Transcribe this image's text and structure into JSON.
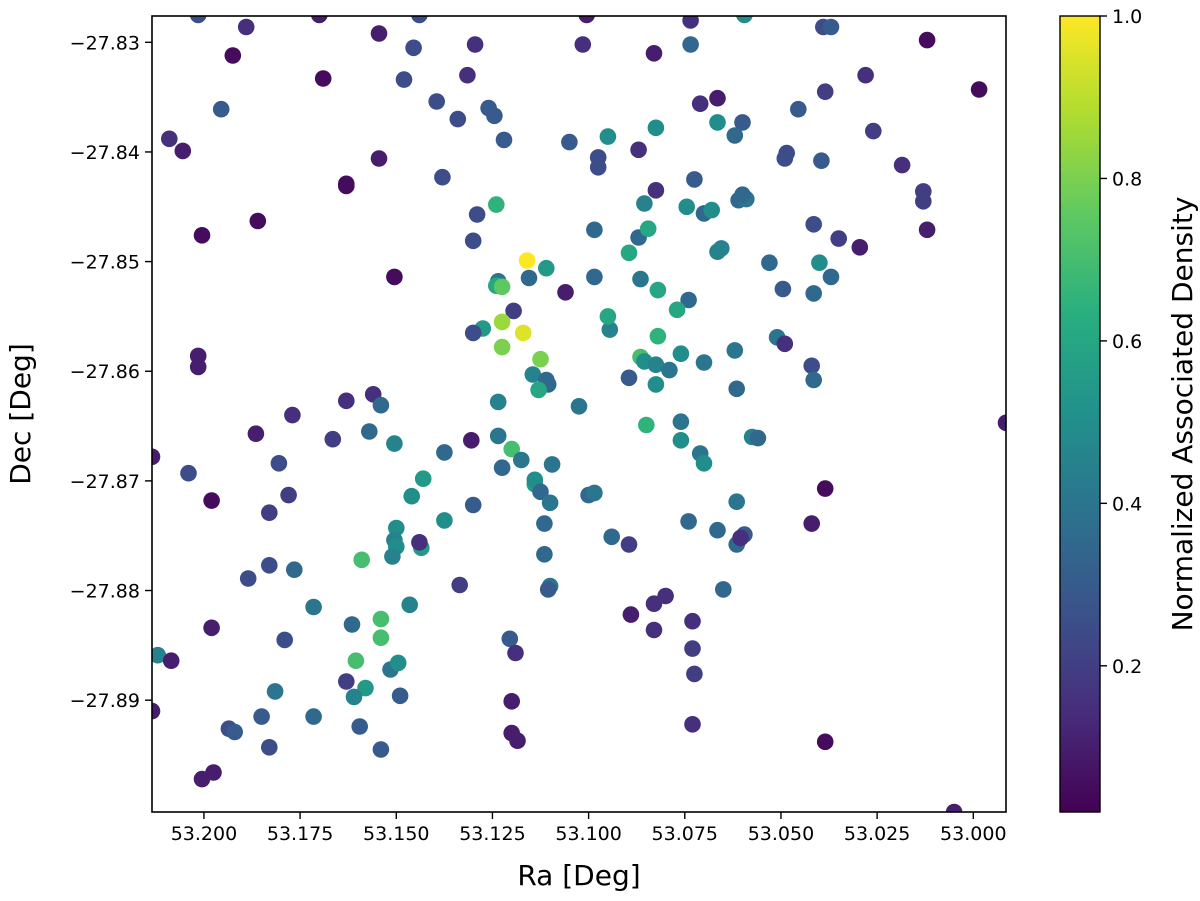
{
  "chart_data": {
    "type": "scatter",
    "xlabel": "Ra [Deg]",
    "ylabel": "Dec [Deg]",
    "colorbar_label": "Normalized Associated Density",
    "x_reversed": true,
    "xlim": [
      53.2135,
      52.9915
    ],
    "ylim": [
      -27.9002,
      -27.8276
    ],
    "x_ticks": [
      53.2,
      53.175,
      53.15,
      53.125,
      53.1,
      53.075,
      53.05,
      53.025,
      53.0
    ],
    "x_tick_labels": [
      "53.200",
      "53.175",
      "53.150",
      "53.125",
      "53.100",
      "53.075",
      "53.050",
      "53.025",
      "53.000"
    ],
    "y_ticks": [
      -27.83,
      -27.84,
      -27.85,
      -27.86,
      -27.87,
      -27.88,
      -27.89
    ],
    "y_tick_labels": [
      "−27.83",
      "−27.84",
      "−27.85",
      "−27.86",
      "−27.87",
      "−27.88",
      "−27.89"
    ],
    "colorbar_ticks": [
      0.2,
      0.4,
      0.6,
      0.8,
      1.0
    ],
    "colorbar_tick_labels": [
      "0.2",
      "0.4",
      "0.6",
      "0.8",
      "1.0"
    ],
    "colormap": "viridis",
    "colorbar_range": [
      0.02,
      1.0
    ],
    "grid": false,
    "points": [
      [
        53.2015,
        -27.8275,
        0.25
      ],
      [
        53.17,
        -27.8275,
        0.1
      ],
      [
        53.144,
        -27.8275,
        0.25
      ],
      [
        53.1005,
        -27.8275,
        0.1
      ],
      [
        53.0735,
        -27.828,
        0.15
      ],
      [
        53.0595,
        -27.8275,
        0.5
      ],
      [
        53.1925,
        -27.8312,
        0.05
      ],
      [
        53.189,
        -27.8286,
        0.15
      ],
      [
        53.1545,
        -27.8292,
        0.1
      ],
      [
        53.1455,
        -27.8305,
        0.25
      ],
      [
        53.1295,
        -27.8302,
        0.15
      ],
      [
        53.1015,
        -27.8302,
        0.15
      ],
      [
        53.083,
        -27.831,
        0.1
      ],
      [
        53.0735,
        -27.8302,
        0.35
      ],
      [
        53.039,
        -27.8286,
        0.25
      ],
      [
        53.037,
        -27.8286,
        0.3
      ],
      [
        53.012,
        -27.8298,
        0.05
      ],
      [
        53.169,
        -27.8333,
        0.05
      ],
      [
        53.148,
        -27.8334,
        0.25
      ],
      [
        53.1315,
        -27.833,
        0.15
      ],
      [
        53.028,
        -27.833,
        0.15
      ],
      [
        52.9985,
        -27.8343,
        0.05
      ],
      [
        53.1955,
        -27.8361,
        0.3
      ],
      [
        53.1395,
        -27.8354,
        0.25
      ],
      [
        53.134,
        -27.837,
        0.25
      ],
      [
        53.1245,
        -27.8367,
        0.3
      ],
      [
        53.071,
        -27.8356,
        0.15
      ],
      [
        53.0665,
        -27.8351,
        0.1
      ],
      [
        53.0385,
        -27.8345,
        0.2
      ],
      [
        53.0455,
        -27.8361,
        0.3
      ],
      [
        53.126,
        -27.836,
        0.3
      ],
      [
        53.209,
        -27.8388,
        0.15
      ],
      [
        53.2055,
        -27.8399,
        0.1
      ],
      [
        53.122,
        -27.8389,
        0.3
      ],
      [
        53.105,
        -27.8391,
        0.3
      ],
      [
        53.095,
        -27.8386,
        0.5
      ],
      [
        53.0825,
        -27.8378,
        0.5
      ],
      [
        53.0665,
        -27.8373,
        0.5
      ],
      [
        53.06,
        -27.8373,
        0.3
      ],
      [
        53.062,
        -27.8385,
        0.35
      ],
      [
        53.026,
        -27.8381,
        0.2
      ],
      [
        53.1545,
        -27.8406,
        0.1
      ],
      [
        53.0975,
        -27.8405,
        0.25
      ],
      [
        53.0975,
        -27.8414,
        0.25
      ],
      [
        53.087,
        -27.8398,
        0.15
      ],
      [
        53.0485,
        -27.8401,
        0.25
      ],
      [
        53.049,
        -27.8406,
        0.25
      ],
      [
        53.0185,
        -27.8412,
        0.15
      ],
      [
        53.0395,
        -27.8408,
        0.3
      ],
      [
        53.163,
        -27.8429,
        0.05
      ],
      [
        53.163,
        -27.8431,
        0.05
      ],
      [
        53.138,
        -27.8423,
        0.25
      ],
      [
        53.0825,
        -27.8435,
        0.15
      ],
      [
        53.0725,
        -27.8425,
        0.3
      ],
      [
        53.013,
        -27.8436,
        0.2
      ],
      [
        53.013,
        -27.8445,
        0.2
      ],
      [
        53.124,
        -27.8448,
        0.65
      ],
      [
        53.129,
        -27.8457,
        0.25
      ],
      [
        53.0855,
        -27.8447,
        0.45
      ],
      [
        53.0745,
        -27.845,
        0.5
      ],
      [
        53.07,
        -27.8456,
        0.35
      ],
      [
        53.068,
        -27.8453,
        0.5
      ],
      [
        53.061,
        -27.8444,
        0.35
      ],
      [
        53.059,
        -27.8443,
        0.4
      ],
      [
        53.06,
        -27.8439,
        0.35
      ],
      [
        53.2005,
        -27.8476,
        0.05
      ],
      [
        53.186,
        -27.8463,
        0.05
      ],
      [
        53.13,
        -27.8481,
        0.25
      ],
      [
        53.0985,
        -27.8471,
        0.35
      ],
      [
        53.087,
        -27.8478,
        0.35
      ],
      [
        53.0845,
        -27.847,
        0.6
      ],
      [
        53.0655,
        -27.8488,
        0.45
      ],
      [
        53.0665,
        -27.8491,
        0.45
      ],
      [
        53.0415,
        -27.8466,
        0.25
      ],
      [
        53.035,
        -27.8479,
        0.2
      ],
      [
        53.0295,
        -27.8487,
        0.1
      ],
      [
        53.012,
        -27.8471,
        0.1
      ],
      [
        53.1505,
        -27.8514,
        0.05
      ],
      [
        53.1235,
        -27.8518,
        0.4
      ],
      [
        53.124,
        -27.8522,
        0.6
      ],
      [
        53.116,
        -27.8499,
        1.0
      ],
      [
        53.1155,
        -27.8515,
        0.35
      ],
      [
        53.111,
        -27.8506,
        0.55
      ],
      [
        53.106,
        -27.8528,
        0.1
      ],
      [
        53.0985,
        -27.8514,
        0.35
      ],
      [
        53.0895,
        -27.8492,
        0.6
      ],
      [
        53.0865,
        -27.8516,
        0.4
      ],
      [
        53.082,
        -27.8526,
        0.6
      ],
      [
        53.053,
        -27.8501,
        0.35
      ],
      [
        53.0495,
        -27.8525,
        0.3
      ],
      [
        53.04,
        -27.8501,
        0.5
      ],
      [
        53.037,
        -27.8514,
        0.35
      ],
      [
        53.0415,
        -27.8529,
        0.35
      ],
      [
        53.074,
        -27.8535,
        0.35
      ],
      [
        53.077,
        -27.8544,
        0.6
      ],
      [
        53.1225,
        -27.8523,
        0.75
      ],
      [
        53.1195,
        -27.8545,
        0.2
      ],
      [
        53.1225,
        -27.8555,
        0.85
      ],
      [
        53.1275,
        -27.8561,
        0.55
      ],
      [
        53.13,
        -27.8565,
        0.25
      ],
      [
        53.117,
        -27.8565,
        0.95
      ],
      [
        53.1225,
        -27.8578,
        0.8
      ],
      [
        53.1125,
        -27.8589,
        0.8
      ],
      [
        53.0945,
        -27.8562,
        0.45
      ],
      [
        53.095,
        -27.855,
        0.6
      ],
      [
        53.082,
        -27.8568,
        0.65
      ],
      [
        53.051,
        -27.8569,
        0.4
      ],
      [
        53.049,
        -27.8575,
        0.15
      ],
      [
        53.2015,
        -27.8586,
        0.1
      ],
      [
        53.2015,
        -27.8596,
        0.1
      ],
      [
        53.1145,
        -27.8603,
        0.45
      ],
      [
        53.111,
        -27.8608,
        0.35
      ],
      [
        53.1105,
        -27.8612,
        0.35
      ],
      [
        53.113,
        -27.8617,
        0.6
      ],
      [
        53.0895,
        -27.8606,
        0.3
      ],
      [
        53.0865,
        -27.8587,
        0.7
      ],
      [
        53.0855,
        -27.8591,
        0.5
      ],
      [
        53.0825,
        -27.8594,
        0.45
      ],
      [
        53.0825,
        -27.8612,
        0.5
      ],
      [
        53.079,
        -27.8599,
        0.4
      ],
      [
        53.076,
        -27.8584,
        0.5
      ],
      [
        53.07,
        -27.8592,
        0.4
      ],
      [
        53.062,
        -27.8581,
        0.4
      ],
      [
        53.042,
        -27.8595,
        0.25
      ],
      [
        53.0415,
        -27.8608,
        0.35
      ],
      [
        53.163,
        -27.8627,
        0.15
      ],
      [
        53.156,
        -27.8621,
        0.15
      ],
      [
        53.154,
        -27.8631,
        0.35
      ],
      [
        53.1235,
        -27.8628,
        0.45
      ],
      [
        53.1025,
        -27.8632,
        0.4
      ],
      [
        53.085,
        -27.8649,
        0.65
      ],
      [
        53.076,
        -27.8646,
        0.4
      ],
      [
        53.0615,
        -27.8616,
        0.35
      ],
      [
        53.2135,
        -27.8678,
        0.1
      ],
      [
        53.1865,
        -27.8657,
        0.1
      ],
      [
        53.177,
        -27.864,
        0.15
      ],
      [
        53.1665,
        -27.8662,
        0.2
      ],
      [
        53.157,
        -27.8655,
        0.35
      ],
      [
        53.1505,
        -27.8666,
        0.45
      ],
      [
        53.1375,
        -27.8674,
        0.35
      ],
      [
        53.1305,
        -27.8663,
        0.1
      ],
      [
        53.1235,
        -27.8659,
        0.4
      ],
      [
        53.12,
        -27.8671,
        0.7
      ],
      [
        53.1225,
        -27.8688,
        0.35
      ],
      [
        53.1175,
        -27.8681,
        0.4
      ],
      [
        53.1095,
        -27.8685,
        0.4
      ],
      [
        53.076,
        -27.8663,
        0.5
      ],
      [
        53.071,
        -27.8675,
        0.4
      ],
      [
        53.07,
        -27.8684,
        0.5
      ],
      [
        53.0575,
        -27.866,
        0.45
      ],
      [
        53.056,
        -27.8661,
        0.35
      ],
      [
        52.9915,
        -27.8647,
        0.1
      ],
      [
        53.204,
        -27.8693,
        0.25
      ],
      [
        53.198,
        -27.8718,
        0.05
      ],
      [
        53.1805,
        -27.8684,
        0.25
      ],
      [
        53.178,
        -27.8713,
        0.2
      ],
      [
        53.143,
        -27.8698,
        0.55
      ],
      [
        53.146,
        -27.8714,
        0.5
      ],
      [
        53.13,
        -27.8722,
        0.3
      ],
      [
        53.114,
        -27.8703,
        0.55
      ],
      [
        53.114,
        -27.8699,
        0.5
      ],
      [
        53.1125,
        -27.871,
        0.35
      ],
      [
        53.11,
        -27.872,
        0.4
      ],
      [
        53.1,
        -27.8713,
        0.35
      ],
      [
        53.0985,
        -27.8711,
        0.4
      ],
      [
        53.0615,
        -27.8719,
        0.4
      ],
      [
        53.0385,
        -27.8707,
        0.05
      ],
      [
        53.183,
        -27.8729,
        0.2
      ],
      [
        53.1375,
        -27.8736,
        0.5
      ],
      [
        53.1115,
        -27.8739,
        0.35
      ],
      [
        53.074,
        -27.8737,
        0.35
      ],
      [
        53.042,
        -27.8739,
        0.1
      ],
      [
        53.15,
        -27.8743,
        0.5
      ],
      [
        53.1505,
        -27.8754,
        0.45
      ],
      [
        53.15,
        -27.876,
        0.5
      ],
      [
        53.1435,
        -27.8761,
        0.55
      ],
      [
        53.144,
        -27.8756,
        0.15
      ],
      [
        53.151,
        -27.8769,
        0.45
      ],
      [
        53.094,
        -27.8751,
        0.35
      ],
      [
        53.0895,
        -27.8758,
        0.2
      ],
      [
        53.0665,
        -27.8745,
        0.35
      ],
      [
        53.0615,
        -27.8758,
        0.35
      ],
      [
        53.0595,
        -27.8749,
        0.3
      ],
      [
        53.0605,
        -27.8752,
        0.15
      ],
      [
        53.159,
        -27.8772,
        0.7
      ],
      [
        53.1115,
        -27.8767,
        0.35
      ],
      [
        53.1885,
        -27.8789,
        0.25
      ],
      [
        53.183,
        -27.8777,
        0.25
      ],
      [
        53.1765,
        -27.8781,
        0.35
      ],
      [
        53.1335,
        -27.8795,
        0.2
      ],
      [
        53.11,
        -27.8796,
        0.4
      ],
      [
        53.1105,
        -27.8799,
        0.3
      ],
      [
        53.065,
        -27.8799,
        0.35
      ],
      [
        53.1715,
        -27.8815,
        0.4
      ],
      [
        53.1465,
        -27.8813,
        0.45
      ],
      [
        53.089,
        -27.8822,
        0.1
      ],
      [
        53.083,
        -27.8812,
        0.15
      ],
      [
        53.08,
        -27.8805,
        0.15
      ],
      [
        53.198,
        -27.8834,
        0.1
      ],
      [
        53.179,
        -27.8845,
        0.25
      ],
      [
        53.1615,
        -27.8831,
        0.35
      ],
      [
        53.154,
        -27.8826,
        0.7
      ],
      [
        53.154,
        -27.8843,
        0.7
      ],
      [
        53.1205,
        -27.8844,
        0.3
      ],
      [
        53.119,
        -27.8857,
        0.15
      ],
      [
        53.083,
        -27.8836,
        0.15
      ],
      [
        53.073,
        -27.8828,
        0.15
      ],
      [
        53.073,
        -27.8853,
        0.2
      ],
      [
        53.212,
        -27.8859,
        0.45
      ],
      [
        53.2085,
        -27.8864,
        0.1
      ],
      [
        53.1605,
        -27.8864,
        0.7
      ],
      [
        53.163,
        -27.8883,
        0.2
      ],
      [
        53.158,
        -27.8889,
        0.55
      ],
      [
        53.161,
        -27.8897,
        0.45
      ],
      [
        53.1515,
        -27.8872,
        0.4
      ],
      [
        53.1495,
        -27.8866,
        0.5
      ],
      [
        53.149,
        -27.8896,
        0.3
      ],
      [
        53.1815,
        -27.8892,
        0.4
      ],
      [
        53.0725,
        -27.8876,
        0.2
      ],
      [
        53.2135,
        -27.891,
        0.1
      ],
      [
        53.185,
        -27.8915,
        0.3
      ],
      [
        53.1715,
        -27.8915,
        0.35
      ],
      [
        53.12,
        -27.8901,
        0.1
      ],
      [
        53.1935,
        -27.8926,
        0.25
      ],
      [
        53.192,
        -27.8929,
        0.3
      ],
      [
        53.183,
        -27.8943,
        0.25
      ],
      [
        53.1595,
        -27.8924,
        0.3
      ],
      [
        53.154,
        -27.8945,
        0.3
      ],
      [
        53.12,
        -27.893,
        0.1
      ],
      [
        53.1185,
        -27.8937,
        0.1
      ],
      [
        53.073,
        -27.8922,
        0.15
      ],
      [
        53.0385,
        -27.8938,
        0.05
      ],
      [
        53.1975,
        -27.8966,
        0.1
      ],
      [
        53.2005,
        -27.8972,
        0.1
      ],
      [
        53.005,
        -27.9002,
        0.1
      ]
    ]
  }
}
